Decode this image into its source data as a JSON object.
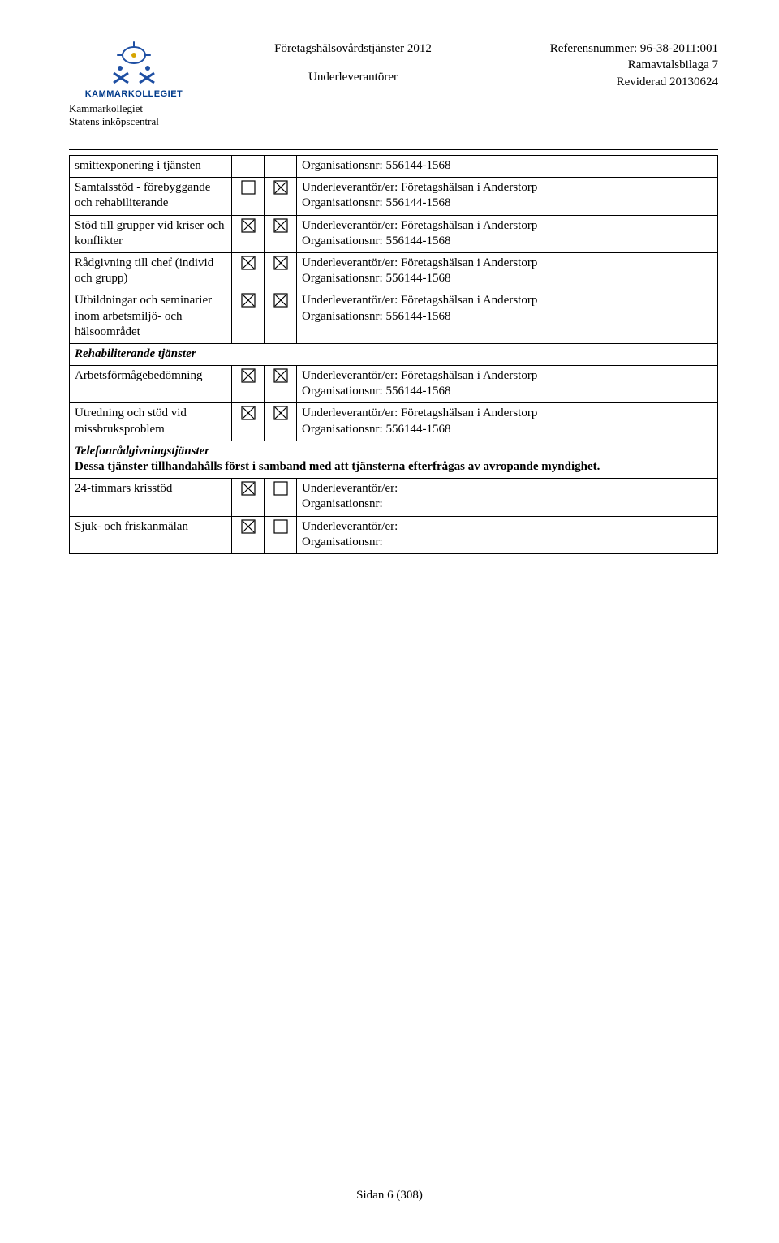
{
  "header": {
    "logo_name": "KAMMARKOLLEGIET",
    "logo_sub1": "Kammarkollegiet",
    "logo_sub2": "Statens inköpscentral",
    "center_line1": "Företagshälsovårdstjänster 2012",
    "center_line2": "Underleverantörer",
    "right_line1": "Referensnummer: 96-38-2011:001",
    "right_line2": "Ramavtalsbilaga 7",
    "right_line3": "Reviderad 20130624"
  },
  "org_line": "Organisationsnr: 556144-1568",
  "ul_line": "Underleverantör/er: Företagshälsan i Anderstorp",
  "ul_blank": "Underleverantör/er:",
  "org_blank": "Organisationsnr:",
  "rows": [
    {
      "label": "smittexponering i tjänsten",
      "c1": "none",
      "c2": "none",
      "right_type": "org_only"
    },
    {
      "label": "Samtalsstöd - förebyggande och rehabiliterande",
      "c1": "empty",
      "c2": "cross",
      "right_type": "full"
    },
    {
      "label": "Stöd till grupper vid kriser och konflikter",
      "c1": "cross",
      "c2": "cross",
      "right_type": "full"
    },
    {
      "label": "Rådgivning till chef (individ och grupp)",
      "c1": "cross",
      "c2": "cross",
      "right_type": "full"
    },
    {
      "label": "Utbildningar och seminarier inom arbetsmiljö- och hälsoområdet",
      "c1": "cross",
      "c2": "cross",
      "right_type": "full"
    }
  ],
  "section_rehab": "Rehabiliterande tjänster",
  "rows2": [
    {
      "label": "Arbetsförmågebedömning",
      "c1": "cross",
      "c2": "cross",
      "right_type": "full"
    },
    {
      "label": "Utredning och stöd vid missbruksproblem",
      "c1": "cross",
      "c2": "cross",
      "right_type": "full"
    }
  ],
  "telefon_heading": "Telefonrådgivningstjänster",
  "telefon_note": "Dessa tjänster tillhandahålls först i samband med att tjänsterna efterfrågas av avropande myndighet.",
  "rows3": [
    {
      "label": "24-timmars krisstöd",
      "c1": "cross",
      "c2": "empty",
      "right_type": "blank"
    },
    {
      "label": "Sjuk- och friskanmälan",
      "c1": "cross",
      "c2": "empty",
      "right_type": "blank"
    }
  ],
  "footer": "Sidan 6 (308)",
  "checkbox": {
    "size": 18,
    "stroke": "#000000",
    "stroke_width": 1.2
  },
  "logo_colors": {
    "blue": "#1e4fa3",
    "gold": "#d6a400"
  }
}
